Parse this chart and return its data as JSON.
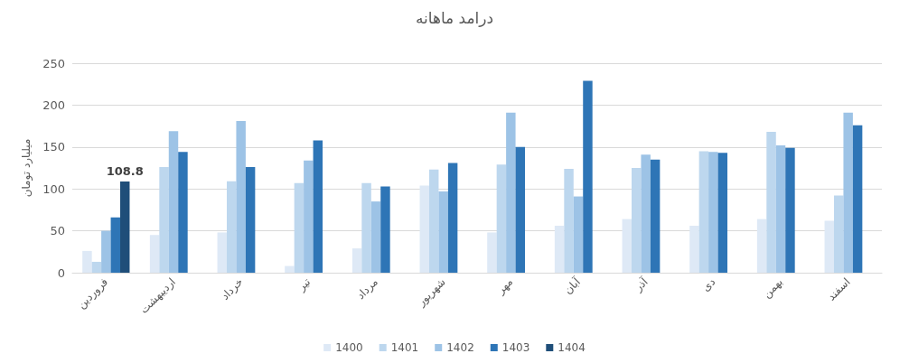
{
  "chart_data": {
    "type": "bar",
    "title": "درامد ماهانه",
    "ylabel": "میلیارد تومان",
    "categories": [
      "فروردین",
      "اردیبهشت",
      "خرداد",
      "تیر",
      "مرداد",
      "شهریور",
      "مهر",
      "آبان",
      "آذر",
      "دی",
      "بهمن",
      "اسفند"
    ],
    "series": [
      {
        "name": "1400",
        "color": "#dee9f6",
        "values": [
          26,
          45,
          48,
          8,
          29,
          104,
          48,
          56,
          64,
          56,
          64,
          62
        ]
      },
      {
        "name": "1401",
        "color": "#bdd7ee",
        "values": [
          13,
          126,
          109,
          107,
          107,
          123,
          129,
          124,
          125,
          145,
          168,
          92
        ]
      },
      {
        "name": "1402",
        "color": "#9dc3e6",
        "values": [
          50,
          169,
          181,
          134,
          85,
          97,
          191,
          91,
          141,
          144,
          152,
          191
        ]
      },
      {
        "name": "1403",
        "color": "#2e75b6",
        "values": [
          66,
          144,
          126,
          158,
          103,
          131,
          150,
          229,
          135,
          143,
          149,
          176
        ]
      },
      {
        "name": "1404",
        "color": "#1f4e79",
        "values": [
          108.8,
          null,
          null,
          null,
          null,
          null,
          null,
          null,
          null,
          null,
          null,
          null
        ],
        "value_labels": [
          "108.8",
          null,
          null,
          null,
          null,
          null,
          null,
          null,
          null,
          null,
          null,
          null
        ]
      }
    ],
    "ylim": [
      0,
      250
    ],
    "yticks": [
      0,
      50,
      100,
      150,
      200,
      250
    ],
    "grid": "y",
    "legend": "bottom"
  }
}
